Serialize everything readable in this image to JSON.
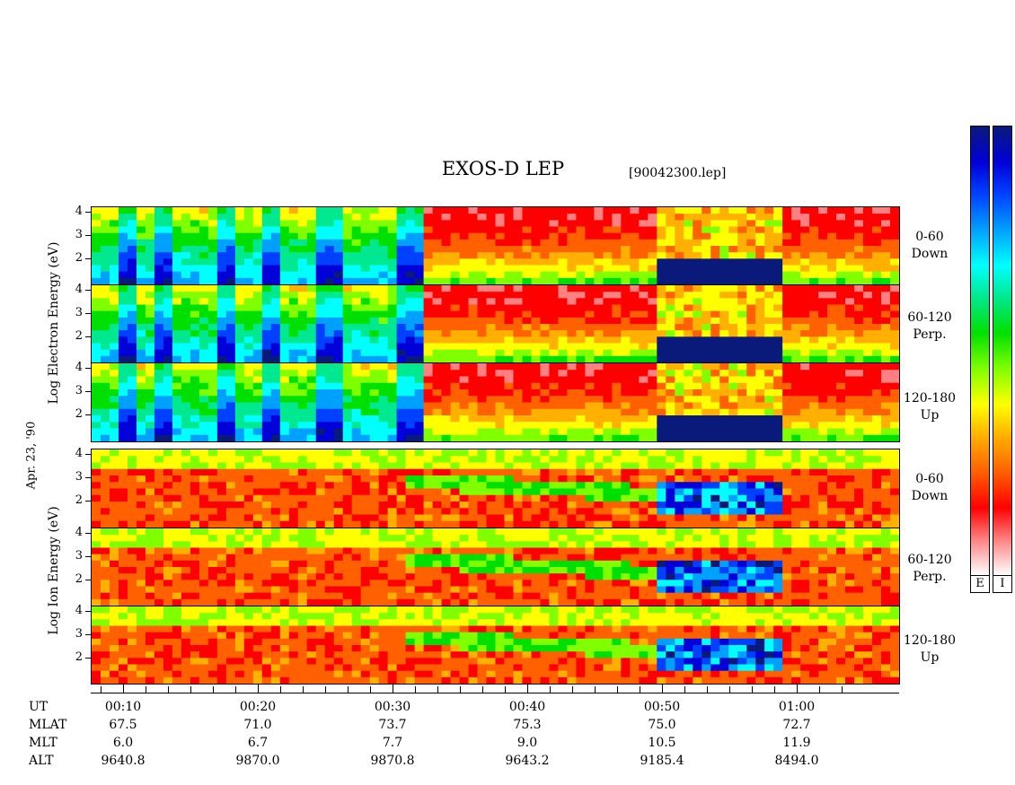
{
  "title": "EXOS-D LEP",
  "file_name": "[90042300.lep]",
  "date_label": "Apr. 23, '90",
  "electron_axis_label": "Log  Electron  Energy (eV)",
  "ion_axis_label": "Log  Ion  Energy (eV)",
  "colorbar": {
    "labels": [
      "E",
      "I"
    ],
    "colors": [
      "#0a1a7a",
      "#0000d8",
      "#0040ff",
      "#00a0ff",
      "#00ffff",
      "#00e890",
      "#00e000",
      "#80ff00",
      "#ffff00",
      "#ffb000",
      "#ff6000",
      "#ff0000",
      "#ff8080",
      "#ffffff"
    ]
  },
  "chart_data": [
    {
      "type": "heatmap",
      "panel": "electron",
      "angle": "0-60 Down",
      "yticks": [
        "4",
        "3",
        "2"
      ],
      "hot_segments": [
        [
          0.03,
          0.05
        ],
        [
          0.07,
          0.09
        ],
        [
          0.15,
          0.17
        ],
        [
          0.21,
          0.23
        ],
        [
          0.27,
          0.31
        ],
        [
          0.37,
          0.4
        ],
        [
          0.7,
          0.85
        ]
      ]
    },
    {
      "type": "heatmap",
      "panel": "electron",
      "angle": "60-120 Perp.",
      "yticks": [
        "4",
        "3",
        "2"
      ],
      "hot_segments": [
        [
          0.03,
          0.05
        ],
        [
          0.07,
          0.09
        ],
        [
          0.15,
          0.17
        ],
        [
          0.21,
          0.23
        ],
        [
          0.27,
          0.31
        ],
        [
          0.37,
          0.4
        ],
        [
          0.7,
          0.85
        ]
      ]
    },
    {
      "type": "heatmap",
      "panel": "electron",
      "angle": "120-180 Up",
      "yticks": [
        "4",
        "3",
        "2"
      ],
      "hot_segments": [
        [
          0.03,
          0.05
        ],
        [
          0.07,
          0.09
        ],
        [
          0.15,
          0.17
        ],
        [
          0.21,
          0.23
        ],
        [
          0.27,
          0.31
        ],
        [
          0.37,
          0.4
        ],
        [
          0.7,
          0.85
        ]
      ]
    },
    {
      "type": "heatmap",
      "panel": "ion",
      "angle": "0-60 Down",
      "yticks": [
        "4",
        "3",
        "2"
      ],
      "hot_segments": [
        [
          0.7,
          0.85
        ]
      ]
    },
    {
      "type": "heatmap",
      "panel": "ion",
      "angle": "60-120 Perp.",
      "yticks": [
        "4",
        "3",
        "2"
      ],
      "hot_segments": [
        [
          0.7,
          0.85
        ]
      ]
    },
    {
      "type": "heatmap",
      "panel": "ion",
      "angle": "120-180 Up",
      "yticks": [
        "4",
        "3",
        "2"
      ],
      "hot_segments": [
        [
          0.7,
          0.85
        ]
      ]
    }
  ],
  "x_axis": {
    "row_headers": [
      "UT",
      "MLAT",
      "MLT",
      "ALT"
    ],
    "ticks": [
      {
        "ut": "00:10",
        "mlat": "67.5",
        "mlt": "6.0",
        "alt": "9640.8"
      },
      {
        "ut": "00:20",
        "mlat": "71.0",
        "mlt": "6.7",
        "alt": "9870.0"
      },
      {
        "ut": "00:30",
        "mlat": "73.7",
        "mlt": "7.7",
        "alt": "9870.8"
      },
      {
        "ut": "00:40",
        "mlat": "75.3",
        "mlt": "9.0",
        "alt": "9643.2"
      },
      {
        "ut": "00:50",
        "mlat": "75.0",
        "mlt": "10.5",
        "alt": "9185.4"
      },
      {
        "ut": "01:00",
        "mlat": "72.7",
        "mlt": "11.9",
        "alt": "8494.0"
      }
    ]
  },
  "panel_labels": [
    {
      "a": "0-60",
      "b": "Down"
    },
    {
      "a": "60-120",
      "b": "Perp."
    },
    {
      "a": "120-180",
      "b": "Up"
    },
    {
      "a": "0-60",
      "b": "Down"
    },
    {
      "a": "60-120",
      "b": "Perp."
    },
    {
      "a": "120-180",
      "b": "Up"
    }
  ]
}
